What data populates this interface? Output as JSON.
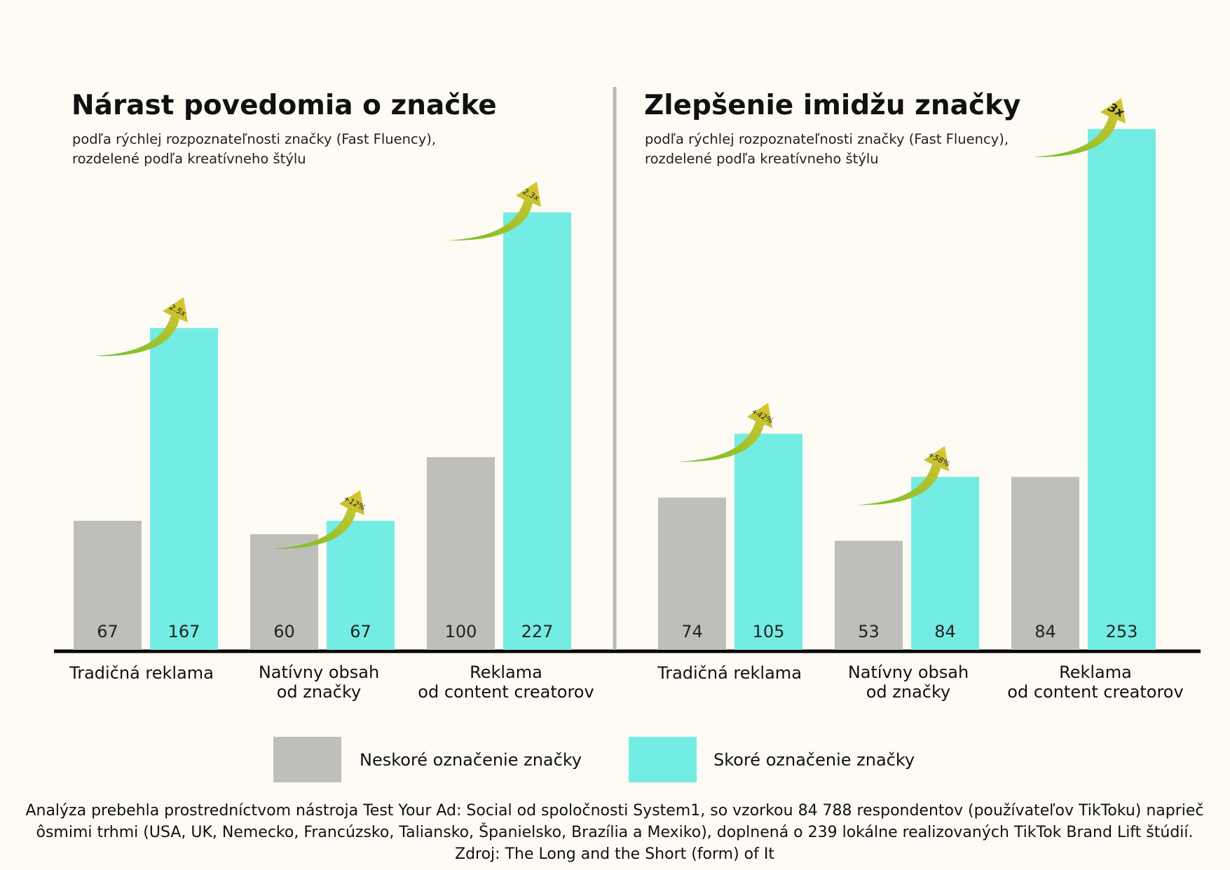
{
  "colors": {
    "late": "#bfbfb9",
    "early": "#73ede4",
    "axis": "#000000",
    "divider": "#b9b9b4",
    "arrow_start": "#6dbf2a",
    "arrow_end": "#e0c431"
  },
  "chart_data": [
    {
      "type": "bar",
      "title": "Nárast povedomia o značke",
      "subtitle": [
        "podľa rýchlej rozpoznateľnosti značky (Fast Fluency),",
        "rozdelené podľa kreatívneho štýlu"
      ],
      "categories": [
        [
          "Tradičná reklama"
        ],
        [
          "Natívny obsah",
          "od značky"
        ],
        [
          "Reklama",
          "od content creatorov"
        ]
      ],
      "series": [
        {
          "name": "Neskoré označenie značky",
          "values": [
            67,
            60,
            100
          ]
        },
        {
          "name": "Skoré označenie značky",
          "values": [
            167,
            67,
            227
          ]
        }
      ],
      "uplift_labels": [
        "2.5x",
        "+12%",
        "2.3x"
      ],
      "ylim": [
        0,
        227
      ]
    },
    {
      "type": "bar",
      "title": "Zlepšenie imidžu značky",
      "subtitle": [
        "podľa rýchlej rozpoznateľnosti značky (Fast Fluency),",
        "rozdelené podľa kreatívneho štýlu"
      ],
      "categories": [
        [
          "Tradičná reklama"
        ],
        [
          "Natívny obsah",
          "od značky"
        ],
        [
          "Reklama",
          "od content creatorov"
        ]
      ],
      "series": [
        {
          "name": "Neskoré označenie značky",
          "values": [
            74,
            53,
            84
          ]
        },
        {
          "name": "Skoré označenie značky",
          "values": [
            105,
            84,
            253
          ]
        }
      ],
      "uplift_labels": [
        "+42%",
        "+58%",
        "3x"
      ],
      "ylim": [
        0,
        253
      ]
    }
  ],
  "legend": [
    {
      "label": "Neskoré označenie značky",
      "color_key": "late"
    },
    {
      "label": "Skoré označenie značky",
      "color_key": "early"
    }
  ],
  "footnote": [
    "Analýza prebehla prostredníctvom nástroja Test Your Ad: Social od spoločnosti System1, so vzorkou 84 788 respondentov (používateľov TikToku) naprieč",
    "ôsmimi trhmi (USA, UK, Nemecko, Francúzsko, Taliansko, Španielsko, Brazília a Mexiko), doplnená o 239 lokálne realizovaných TikTok Brand Lift štúdií.",
    "Zdroj: The Long and the Short (form) of It"
  ]
}
